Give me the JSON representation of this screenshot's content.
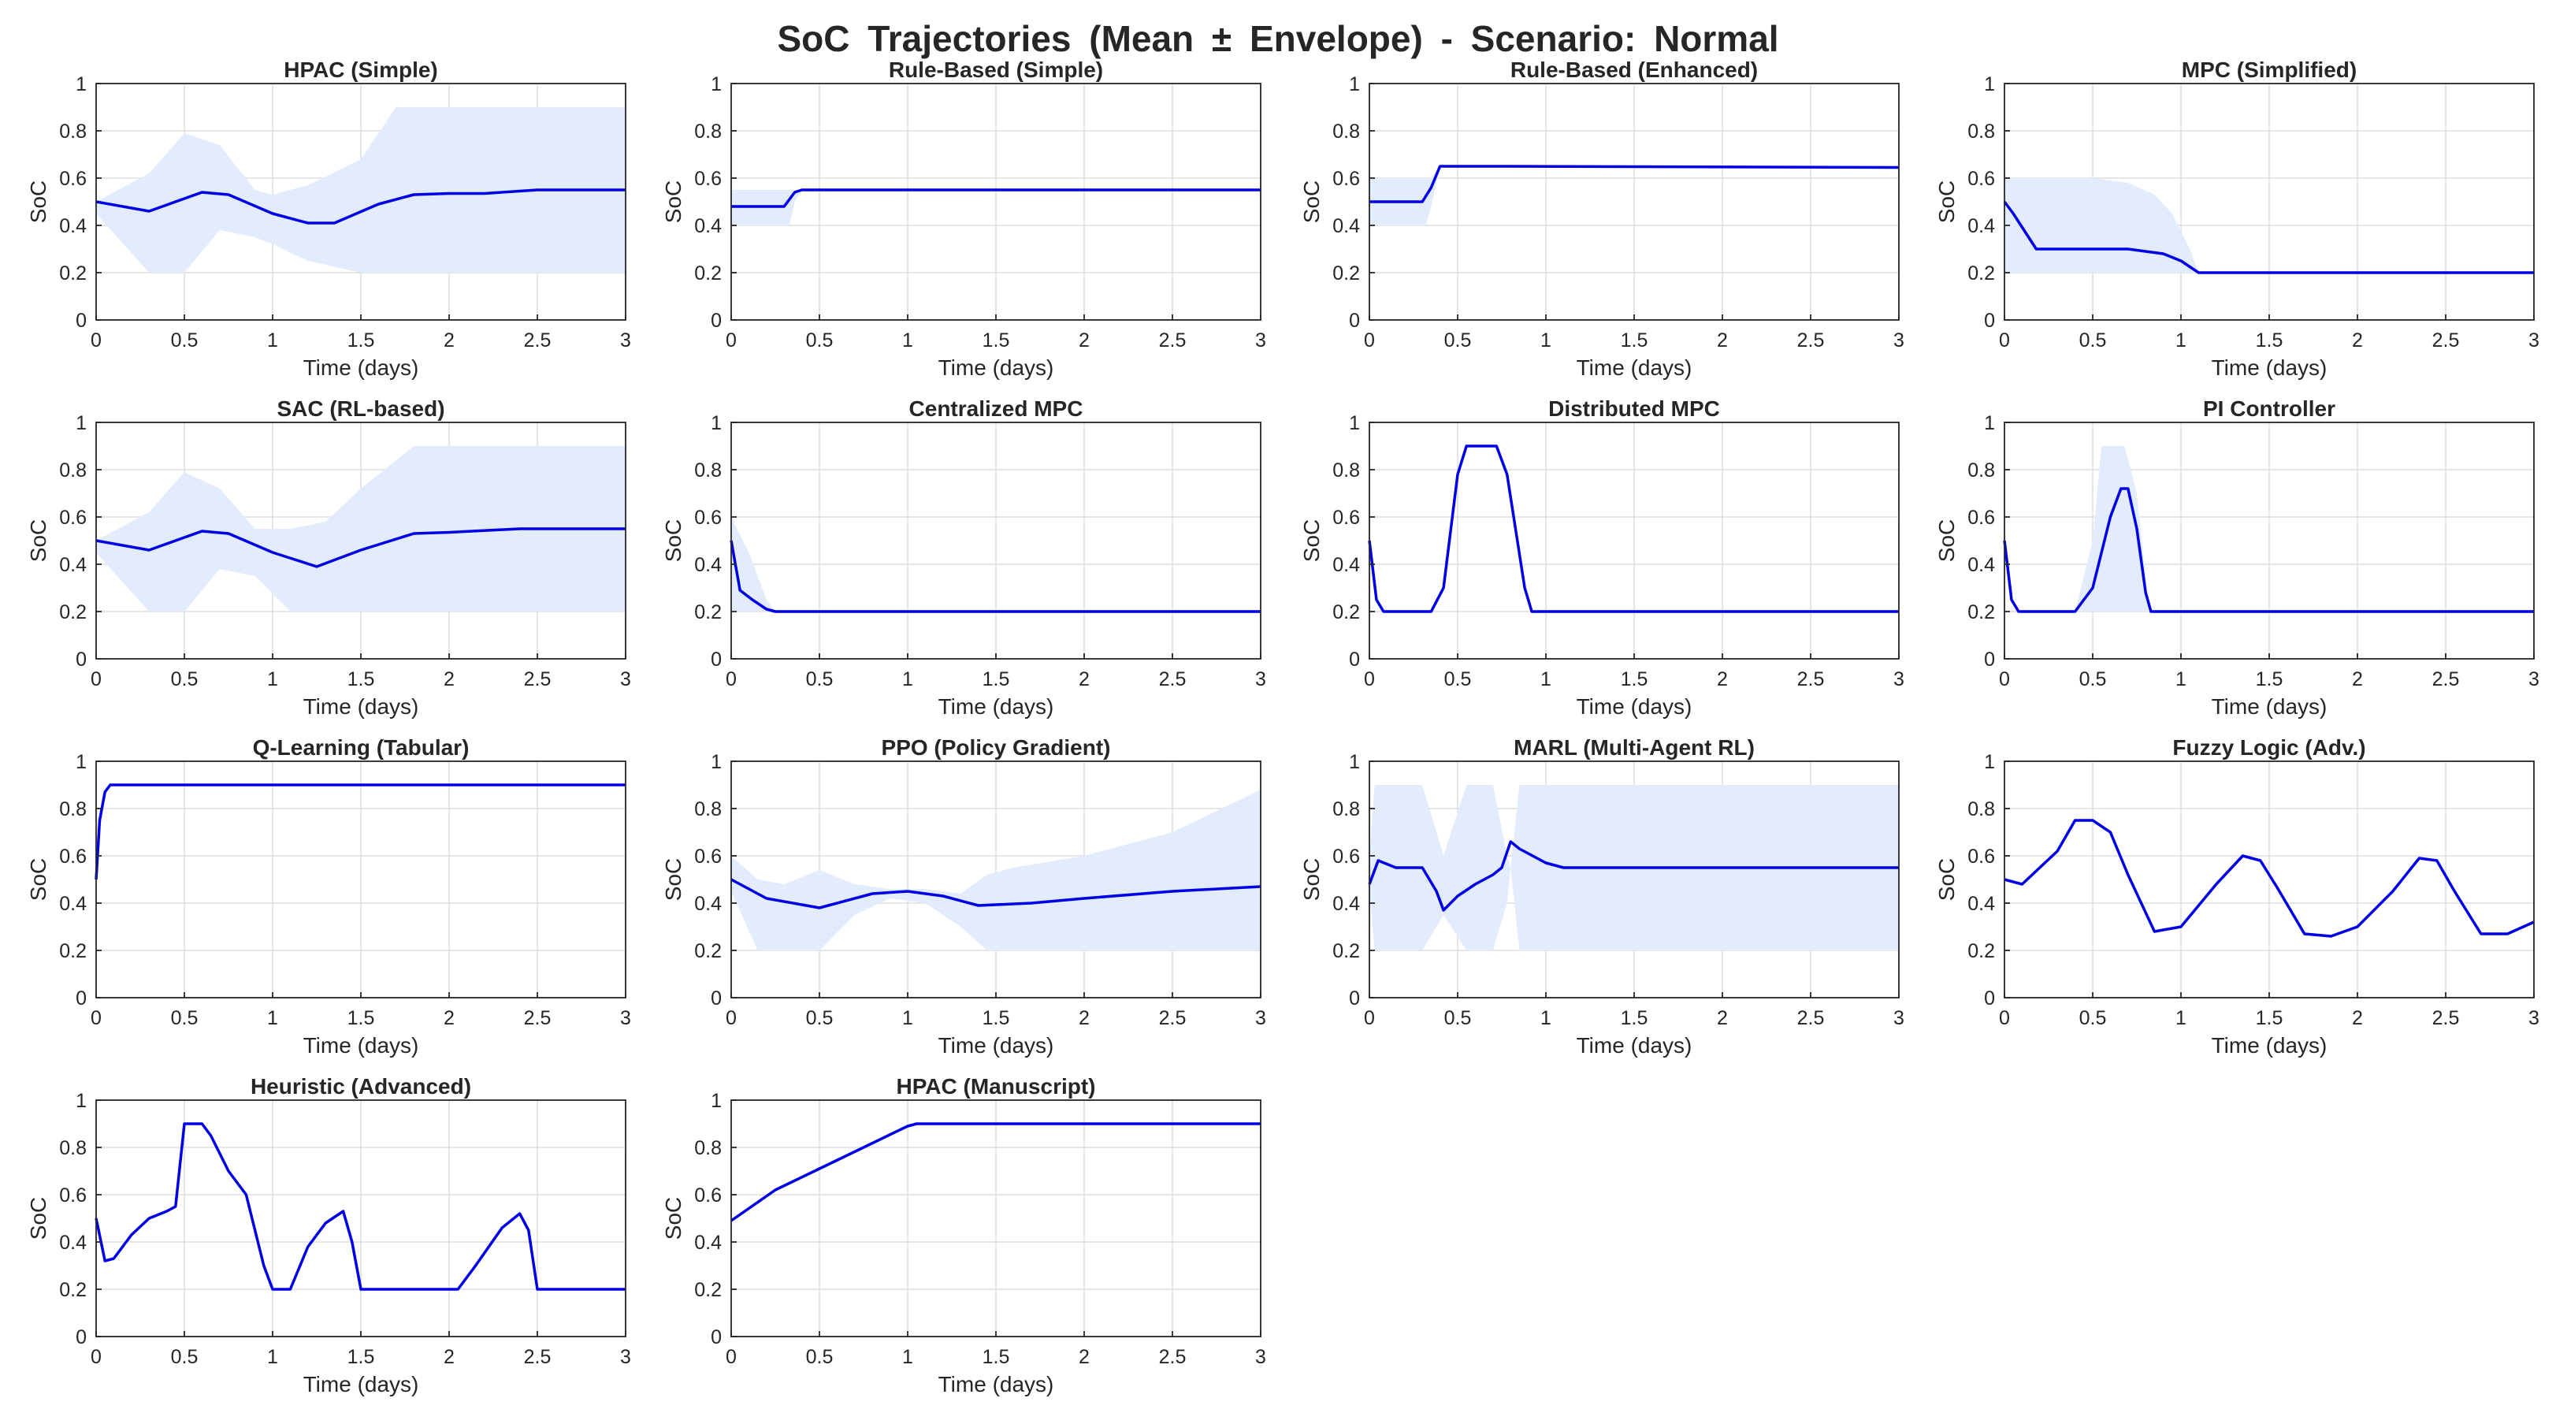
{
  "suptitle": "SoC Trajectories (Mean ± Envelope) - Scenario: Normal",
  "colors": {
    "line": "#0000e6",
    "band": "#e3ecfc",
    "grid": "#dddddd",
    "axis": "#262626",
    "text": "#262626"
  },
  "chart_data": [
    {
      "type": "area",
      "title": "HPAC (Simple)",
      "xlabel": "Time (days)",
      "ylabel": "SoC",
      "xlim": [
        0,
        3
      ],
      "ylim": [
        0,
        1
      ],
      "xticks": [
        "0",
        "0.5",
        "1",
        "1.5",
        "2",
        "2.5",
        "3"
      ],
      "yticks": [
        "0",
        "0.2",
        "0.4",
        "0.6",
        "0.8",
        "1"
      ],
      "grid": true,
      "series": [
        {
          "x": [
            0,
            0.3,
            0.6,
            0.75,
            1.0,
            1.2,
            1.35,
            1.6,
            1.8,
            2.0,
            2.2,
            2.5,
            3.0
          ],
          "values": [
            0.5,
            0.46,
            0.54,
            0.53,
            0.45,
            0.41,
            0.41,
            0.49,
            0.53,
            0.535,
            0.535,
            0.55,
            0.55
          ]
        }
      ],
      "band": {
        "x": [
          0,
          0.3,
          0.5,
          0.7,
          0.9,
          1.0,
          1.2,
          1.5,
          1.7,
          3.0
        ],
        "upper": [
          0.5,
          0.62,
          0.79,
          0.74,
          0.55,
          0.53,
          0.57,
          0.68,
          0.9,
          0.9
        ],
        "lower": [
          0.45,
          0.2,
          0.2,
          0.38,
          0.35,
          0.32,
          0.25,
          0.2,
          0.2,
          0.2
        ]
      }
    },
    {
      "type": "area",
      "title": "Rule-Based (Simple)",
      "xlabel": "Time (days)",
      "ylabel": "SoC",
      "xlim": [
        0,
        3
      ],
      "ylim": [
        0,
        1
      ],
      "xticks": [
        "0",
        "0.5",
        "1",
        "1.5",
        "2",
        "2.5",
        "3"
      ],
      "yticks": [
        "0",
        "0.2",
        "0.4",
        "0.6",
        "0.8",
        "1"
      ],
      "grid": true,
      "series": [
        {
          "x": [
            0,
            0.3,
            0.36,
            0.4,
            0.6,
            3.0
          ],
          "values": [
            0.48,
            0.48,
            0.54,
            0.55,
            0.55,
            0.55
          ]
        }
      ],
      "band": {
        "x": [
          0,
          0.33,
          0.36,
          0.4,
          3.0
        ],
        "upper": [
          0.55,
          0.55,
          0.55,
          0.55,
          0.55
        ],
        "lower": [
          0.4,
          0.4,
          0.5,
          0.55,
          0.55
        ]
      }
    },
    {
      "type": "area",
      "title": "Rule-Based (Enhanced)",
      "xlabel": "Time (days)",
      "ylabel": "SoC",
      "xlim": [
        0,
        3
      ],
      "ylim": [
        0,
        1
      ],
      "xticks": [
        "0",
        "0.5",
        "1",
        "1.5",
        "2",
        "2.5",
        "3"
      ],
      "yticks": [
        "0",
        "0.2",
        "0.4",
        "0.6",
        "0.8",
        "1"
      ],
      "grid": true,
      "series": [
        {
          "x": [
            0,
            0.3,
            0.35,
            0.4,
            0.7,
            3.0
          ],
          "values": [
            0.5,
            0.5,
            0.56,
            0.65,
            0.65,
            0.645
          ]
        }
      ],
      "band": {
        "x": [
          0,
          0.32,
          0.35,
          0.4,
          0.7,
          3.0
        ],
        "upper": [
          0.6,
          0.6,
          0.6,
          0.65,
          0.65,
          0.65
        ],
        "lower": [
          0.4,
          0.4,
          0.48,
          0.65,
          0.65,
          0.65
        ]
      }
    },
    {
      "type": "area",
      "title": "MPC (Simplified)",
      "xlabel": "Time (days)",
      "ylabel": "SoC",
      "xlim": [
        0,
        3
      ],
      "ylim": [
        0,
        1
      ],
      "xticks": [
        "0",
        "0.5",
        "1",
        "1.5",
        "2",
        "2.5",
        "3"
      ],
      "yticks": [
        "0",
        "0.2",
        "0.4",
        "0.6",
        "0.8",
        "1"
      ],
      "grid": true,
      "series": [
        {
          "x": [
            0,
            0.05,
            0.18,
            0.7,
            0.9,
            1.0,
            1.1,
            3.0
          ],
          "values": [
            0.5,
            0.45,
            0.3,
            0.3,
            0.28,
            0.25,
            0.2,
            0.2
          ]
        }
      ],
      "band": {
        "x": [
          0,
          0.5,
          0.7,
          0.85,
          0.95,
          1.05,
          1.1,
          3.0
        ],
        "upper": [
          0.6,
          0.6,
          0.58,
          0.53,
          0.45,
          0.3,
          0.2,
          0.2
        ],
        "lower": [
          0.2,
          0.2,
          0.2,
          0.2,
          0.2,
          0.2,
          0.2,
          0.2
        ]
      }
    },
    {
      "type": "area",
      "title": "SAC (RL-based)",
      "xlabel": "Time (days)",
      "ylabel": "SoC",
      "xlim": [
        0,
        3
      ],
      "ylim": [
        0,
        1
      ],
      "xticks": [
        "0",
        "0.5",
        "1",
        "1.5",
        "2",
        "2.5",
        "3"
      ],
      "yticks": [
        "0",
        "0.2",
        "0.4",
        "0.6",
        "0.8",
        "1"
      ],
      "grid": true,
      "series": [
        {
          "x": [
            0,
            0.3,
            0.6,
            0.75,
            1.0,
            1.25,
            1.5,
            1.8,
            2.0,
            2.4,
            3.0
          ],
          "values": [
            0.5,
            0.46,
            0.54,
            0.53,
            0.45,
            0.39,
            0.46,
            0.53,
            0.535,
            0.55,
            0.55
          ]
        }
      ],
      "band": {
        "x": [
          0,
          0.3,
          0.5,
          0.7,
          0.9,
          1.1,
          1.3,
          1.5,
          1.8,
          3.0
        ],
        "upper": [
          0.5,
          0.62,
          0.79,
          0.72,
          0.55,
          0.55,
          0.58,
          0.72,
          0.9,
          0.9
        ],
        "lower": [
          0.45,
          0.2,
          0.2,
          0.38,
          0.35,
          0.2,
          0.2,
          0.2,
          0.2,
          0.2
        ]
      }
    },
    {
      "type": "area",
      "title": "Centralized MPC",
      "xlabel": "Time (days)",
      "ylabel": "SoC",
      "xlim": [
        0,
        3
      ],
      "ylim": [
        0,
        1
      ],
      "xticks": [
        "0",
        "0.5",
        "1",
        "1.5",
        "2",
        "2.5",
        "3"
      ],
      "yticks": [
        "0",
        "0.2",
        "0.4",
        "0.6",
        "0.8",
        "1"
      ],
      "grid": true,
      "series": [
        {
          "x": [
            0,
            0.05,
            0.12,
            0.2,
            0.25,
            3.0
          ],
          "values": [
            0.5,
            0.29,
            0.25,
            0.21,
            0.2,
            0.2
          ]
        }
      ],
      "band": {
        "x": [
          0,
          0.1,
          0.2,
          0.25,
          3.0
        ],
        "upper": [
          0.6,
          0.45,
          0.25,
          0.2,
          0.2
        ],
        "lower": [
          0.2,
          0.2,
          0.2,
          0.2,
          0.2
        ]
      }
    },
    {
      "type": "area",
      "title": "Distributed MPC",
      "xlabel": "Time (days)",
      "ylabel": "SoC",
      "xlim": [
        0,
        3
      ],
      "ylim": [
        0,
        1
      ],
      "xticks": [
        "0",
        "0.5",
        "1",
        "1.5",
        "2",
        "2.5",
        "3"
      ],
      "yticks": [
        "0",
        "0.2",
        "0.4",
        "0.6",
        "0.8",
        "1"
      ],
      "grid": true,
      "series": [
        {
          "x": [
            0,
            0.04,
            0.08,
            0.35,
            0.42,
            0.5,
            0.55,
            0.72,
            0.78,
            0.88,
            0.92,
            3.0
          ],
          "values": [
            0.5,
            0.25,
            0.2,
            0.2,
            0.3,
            0.78,
            0.9,
            0.9,
            0.78,
            0.3,
            0.2,
            0.2
          ]
        }
      ]
    },
    {
      "type": "area",
      "title": "PI Controller",
      "xlabel": "Time (days)",
      "ylabel": "SoC",
      "xlim": [
        0,
        3
      ],
      "ylim": [
        0,
        1
      ],
      "xticks": [
        "0",
        "0.5",
        "1",
        "1.5",
        "2",
        "2.5",
        "3"
      ],
      "yticks": [
        "0",
        "0.2",
        "0.4",
        "0.6",
        "0.8",
        "1"
      ],
      "grid": true,
      "series": [
        {
          "x": [
            0,
            0.04,
            0.08,
            0.4,
            0.5,
            0.6,
            0.66,
            0.7,
            0.75,
            0.8,
            0.83,
            3.0
          ],
          "values": [
            0.5,
            0.25,
            0.2,
            0.2,
            0.3,
            0.6,
            0.72,
            0.72,
            0.55,
            0.28,
            0.2,
            0.2
          ]
        }
      ],
      "band": {
        "x": [
          0,
          0.4,
          0.5,
          0.55,
          0.68,
          0.75,
          0.82,
          3.0
        ],
        "upper": [
          0.2,
          0.2,
          0.5,
          0.9,
          0.9,
          0.7,
          0.2,
          0.2
        ],
        "lower": [
          0.2,
          0.2,
          0.2,
          0.2,
          0.2,
          0.2,
          0.2,
          0.2
        ]
      }
    },
    {
      "type": "area",
      "title": "Q-Learning (Tabular)",
      "xlabel": "Time (days)",
      "ylabel": "SoC",
      "xlim": [
        0,
        3
      ],
      "ylim": [
        0,
        1
      ],
      "xticks": [
        "0",
        "0.5",
        "1",
        "1.5",
        "2",
        "2.5",
        "3"
      ],
      "yticks": [
        "0",
        "0.2",
        "0.4",
        "0.6",
        "0.8",
        "1"
      ],
      "grid": true,
      "series": [
        {
          "x": [
            0,
            0.02,
            0.05,
            0.08,
            3.0
          ],
          "values": [
            0.5,
            0.75,
            0.87,
            0.9,
            0.9
          ]
        }
      ]
    },
    {
      "type": "area",
      "title": "PPO (Policy Gradient)",
      "xlabel": "Time (days)",
      "ylabel": "SoC",
      "xlim": [
        0,
        3
      ],
      "ylim": [
        0,
        1
      ],
      "xticks": [
        "0",
        "0.5",
        "1",
        "1.5",
        "2",
        "2.5",
        "3"
      ],
      "yticks": [
        "0",
        "0.2",
        "0.4",
        "0.6",
        "0.8",
        "1"
      ],
      "grid": true,
      "series": [
        {
          "x": [
            0,
            0.2,
            0.5,
            0.8,
            1.0,
            1.2,
            1.4,
            1.7,
            2.0,
            2.5,
            3.0
          ],
          "values": [
            0.5,
            0.42,
            0.38,
            0.44,
            0.45,
            0.43,
            0.39,
            0.4,
            0.42,
            0.45,
            0.47
          ]
        }
      ],
      "band": {
        "x": [
          0,
          0.15,
          0.3,
          0.5,
          0.7,
          0.9,
          1.1,
          1.3,
          1.45,
          1.6,
          2.0,
          2.5,
          3.0
        ],
        "upper": [
          0.6,
          0.5,
          0.48,
          0.54,
          0.48,
          0.46,
          0.46,
          0.44,
          0.52,
          0.55,
          0.6,
          0.7,
          0.88
        ],
        "lower": [
          0.45,
          0.2,
          0.2,
          0.2,
          0.35,
          0.42,
          0.4,
          0.3,
          0.2,
          0.2,
          0.2,
          0.2,
          0.2
        ]
      }
    },
    {
      "type": "area",
      "title": "MARL (Multi-Agent RL)",
      "xlabel": "Time (days)",
      "ylabel": "SoC",
      "xlim": [
        0,
        3
      ],
      "ylim": [
        0,
        1
      ],
      "xticks": [
        "0",
        "0.5",
        "1",
        "1.5",
        "2",
        "2.5",
        "3"
      ],
      "yticks": [
        "0",
        "0.2",
        "0.4",
        "0.6",
        "0.8",
        "1"
      ],
      "grid": true,
      "series": [
        {
          "x": [
            0,
            0.05,
            0.15,
            0.3,
            0.38,
            0.42,
            0.5,
            0.6,
            0.7,
            0.75,
            0.8,
            0.85,
            1.0,
            1.1,
            3.0
          ],
          "values": [
            0.48,
            0.58,
            0.55,
            0.55,
            0.45,
            0.37,
            0.43,
            0.48,
            0.52,
            0.55,
            0.66,
            0.63,
            0.57,
            0.55,
            0.55
          ]
        }
      ],
      "band": {
        "x": [
          0,
          0.03,
          0.08,
          0.2,
          0.3,
          0.42,
          0.55,
          0.65,
          0.7,
          0.78,
          0.8,
          0.85,
          3.0
        ],
        "upper": [
          0.6,
          0.9,
          0.9,
          0.9,
          0.9,
          0.6,
          0.9,
          0.9,
          0.9,
          0.6,
          0.55,
          0.9,
          0.9
        ],
        "lower": [
          0.45,
          0.2,
          0.2,
          0.2,
          0.2,
          0.35,
          0.2,
          0.2,
          0.2,
          0.4,
          0.55,
          0.2,
          0.2
        ]
      }
    },
    {
      "type": "area",
      "title": "Fuzzy Logic (Adv.)",
      "xlabel": "Time (days)",
      "ylabel": "SoC",
      "xlim": [
        0,
        3
      ],
      "ylim": [
        0,
        1
      ],
      "xticks": [
        "0",
        "0.5",
        "1",
        "1.5",
        "2",
        "2.5",
        "3"
      ],
      "yticks": [
        "0",
        "0.2",
        "0.4",
        "0.6",
        "0.8",
        "1"
      ],
      "grid": true,
      "series": [
        {
          "x": [
            0,
            0.1,
            0.2,
            0.3,
            0.4,
            0.5,
            0.6,
            0.7,
            0.85,
            1.0,
            1.2,
            1.35,
            1.45,
            1.55,
            1.7,
            1.85,
            2.0,
            2.2,
            2.35,
            2.45,
            2.55,
            2.7,
            2.85,
            3.0
          ],
          "values": [
            0.5,
            0.48,
            0.55,
            0.62,
            0.75,
            0.75,
            0.7,
            0.52,
            0.28,
            0.3,
            0.48,
            0.6,
            0.58,
            0.46,
            0.27,
            0.26,
            0.3,
            0.45,
            0.59,
            0.58,
            0.45,
            0.27,
            0.27,
            0.32
          ]
        }
      ]
    },
    {
      "type": "area",
      "title": "Heuristic (Advanced)",
      "xlabel": "Time (days)",
      "ylabel": "SoC",
      "xlim": [
        0,
        3
      ],
      "ylim": [
        0,
        1
      ],
      "xticks": [
        "0",
        "0.5",
        "1",
        "1.5",
        "2",
        "2.5",
        "3"
      ],
      "yticks": [
        "0",
        "0.2",
        "0.4",
        "0.6",
        "0.8",
        "1"
      ],
      "grid": true,
      "series": [
        {
          "x": [
            0,
            0.05,
            0.1,
            0.2,
            0.3,
            0.4,
            0.45,
            0.5,
            0.6,
            0.65,
            0.75,
            0.85,
            0.9,
            0.95,
            1.0,
            1.1,
            1.2,
            1.3,
            1.4,
            1.45,
            1.5,
            2.0,
            2.05,
            2.15,
            2.3,
            2.4,
            2.45,
            2.5,
            3.0
          ],
          "values": [
            0.5,
            0.32,
            0.33,
            0.43,
            0.5,
            0.53,
            0.55,
            0.9,
            0.9,
            0.85,
            0.7,
            0.6,
            0.45,
            0.3,
            0.2,
            0.2,
            0.38,
            0.48,
            0.53,
            0.4,
            0.2,
            0.2,
            0.2,
            0.3,
            0.46,
            0.52,
            0.45,
            0.2,
            0.2
          ]
        }
      ]
    },
    {
      "type": "area",
      "title": "HPAC (Manuscript)",
      "xlabel": "Time (days)",
      "ylabel": "SoC",
      "xlim": [
        0,
        3
      ],
      "ylim": [
        0,
        1
      ],
      "xticks": [
        "0",
        "0.5",
        "1",
        "1.5",
        "2",
        "2.5",
        "3"
      ],
      "yticks": [
        "0",
        "0.2",
        "0.4",
        "0.6",
        "0.8",
        "1"
      ],
      "grid": true,
      "series": [
        {
          "x": [
            0,
            0.25,
            0.5,
            0.75,
            1.0,
            1.05,
            3.0
          ],
          "values": [
            0.49,
            0.62,
            0.71,
            0.8,
            0.89,
            0.9,
            0.9
          ]
        }
      ]
    }
  ]
}
